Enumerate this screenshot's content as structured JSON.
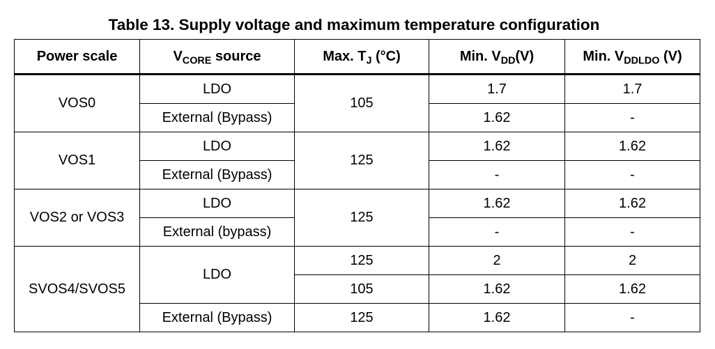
{
  "caption": "Table 13. Supply voltage and maximum temperature configuration",
  "headers": {
    "power_scale": "Power scale",
    "vcore_main": "V",
    "vcore_sub": "CORE",
    "vcore_suffix": " source",
    "tj_main": "Max. T",
    "tj_sub": "J",
    "tj_suffix": " (°C)",
    "vdd_main": "Min. V",
    "vdd_sub": "DD",
    "vdd_suffix": "(V)",
    "vddldo_main": "Min. V",
    "vddldo_sub": "DDLDO",
    "vddldo_suffix": " (V)"
  },
  "groups": [
    {
      "power_scale": "VOS0",
      "max_tj": "105",
      "rows": [
        {
          "source": "LDO",
          "min_vdd": "1.7",
          "min_vddldo": "1.7"
        },
        {
          "source": "External (Bypass)",
          "min_vdd": "1.62",
          "min_vddldo": "-"
        }
      ]
    },
    {
      "power_scale": "VOS1",
      "max_tj": "125",
      "rows": [
        {
          "source": "LDO",
          "min_vdd": "1.62",
          "min_vddldo": "1.62"
        },
        {
          "source": "External (Bypass)",
          "min_vdd": "-",
          "min_vddldo": "-"
        }
      ]
    },
    {
      "power_scale": "VOS2 or VOS3",
      "max_tj": "125",
      "rows": [
        {
          "source": "LDO",
          "min_vdd": "1.62",
          "min_vddldo": "1.62"
        },
        {
          "source": "External (bypass)",
          "min_vdd": "-",
          "min_vddldo": "-"
        }
      ]
    },
    {
      "power_scale": "SVOS4/SVOS5",
      "ldo_source": "LDO",
      "ldo_rows": [
        {
          "max_tj": "125",
          "min_vdd": "2",
          "min_vddldo": "2"
        },
        {
          "max_tj": "105",
          "min_vdd": "1.62",
          "min_vddldo": "1.62"
        }
      ],
      "bypass_row": {
        "source": "External (Bypass)",
        "max_tj": "125",
        "min_vdd": "1.62",
        "min_vddldo": "-"
      }
    }
  ]
}
